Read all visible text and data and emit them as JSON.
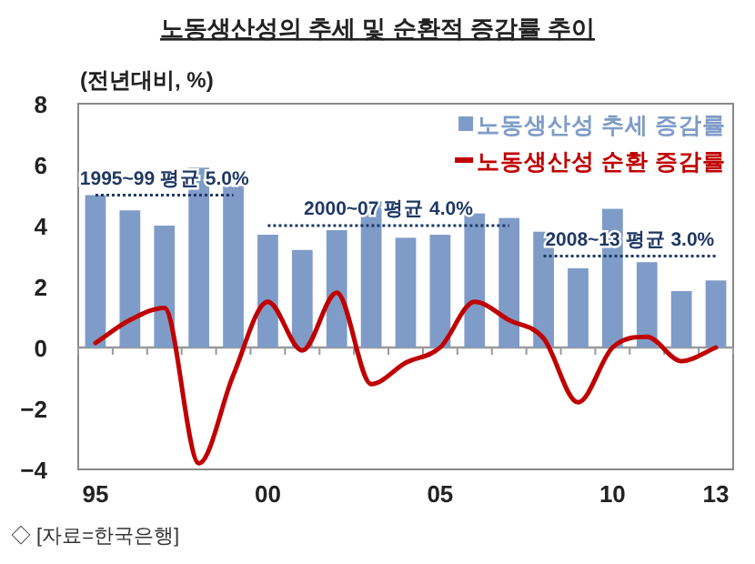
{
  "chart_data": {
    "type": "bar",
    "title": "노동생산성의 추세 및 순환적 증감률 추이",
    "ylabel": "(전년대비, %)",
    "categories": [
      "95",
      null,
      null,
      null,
      null,
      "00",
      null,
      null,
      null,
      null,
      "05",
      null,
      null,
      null,
      null,
      "10",
      null,
      null,
      "13"
    ],
    "series": [
      {
        "name": "노동생산성 추세 증감률",
        "color": "#7f9cc8",
        "values": [
          5.0,
          4.5,
          4.0,
          5.9,
          5.3,
          3.7,
          3.2,
          3.85,
          4.8,
          3.6,
          3.7,
          4.4,
          4.25,
          3.8,
          2.6,
          4.55,
          2.8,
          1.85,
          2.2
        ]
      },
      {
        "name": "노동생산성 순환 증감률",
        "type": "line",
        "color": "#c00000",
        "values": [
          0.15,
          0.9,
          1.3,
          -3.8,
          -0.9,
          1.5,
          -0.1,
          1.8,
          -1.2,
          -0.5,
          0.0,
          1.5,
          0.9,
          0.3,
          -1.8,
          0.0,
          0.35,
          -0.45,
          0.0
        ]
      },
      {
        "name": "1995~99 평균 5.0%",
        "type": "line",
        "line_style": "dotted",
        "color": "#1f3864",
        "values": [
          5.0,
          5.0,
          5.0,
          5.0,
          5.0,
          null,
          null,
          null,
          null,
          null,
          null,
          null,
          null,
          null,
          null,
          null,
          null,
          null,
          null
        ]
      },
      {
        "name": "2000~07 평균 4.0%",
        "type": "line",
        "line_style": "dotted",
        "color": "#1f3864",
        "values": [
          null,
          null,
          null,
          null,
          null,
          4.0,
          4.0,
          4.0,
          4.0,
          4.0,
          4.0,
          4.0,
          4.0,
          null,
          null,
          null,
          null,
          null,
          null
        ]
      },
      {
        "name": "2008~13 평균 3.0%",
        "type": "line",
        "line_style": "dotted",
        "color": "#1f3864",
        "values": [
          null,
          null,
          null,
          null,
          null,
          null,
          null,
          null,
          null,
          null,
          null,
          null,
          null,
          3.0,
          3.0,
          3.0,
          3.0,
          3.0,
          3.0
        ]
      }
    ],
    "ylim": [
      -4,
      8
    ],
    "yticks": [
      {
        "value": -4,
        "label": "−4"
      },
      {
        "value": -2,
        "label": "−2"
      },
      0,
      2,
      4,
      6,
      8
    ],
    "legend": "top right",
    "marker": "none",
    "annotations": [
      "◇ [자료=한국은행]"
    ]
  }
}
